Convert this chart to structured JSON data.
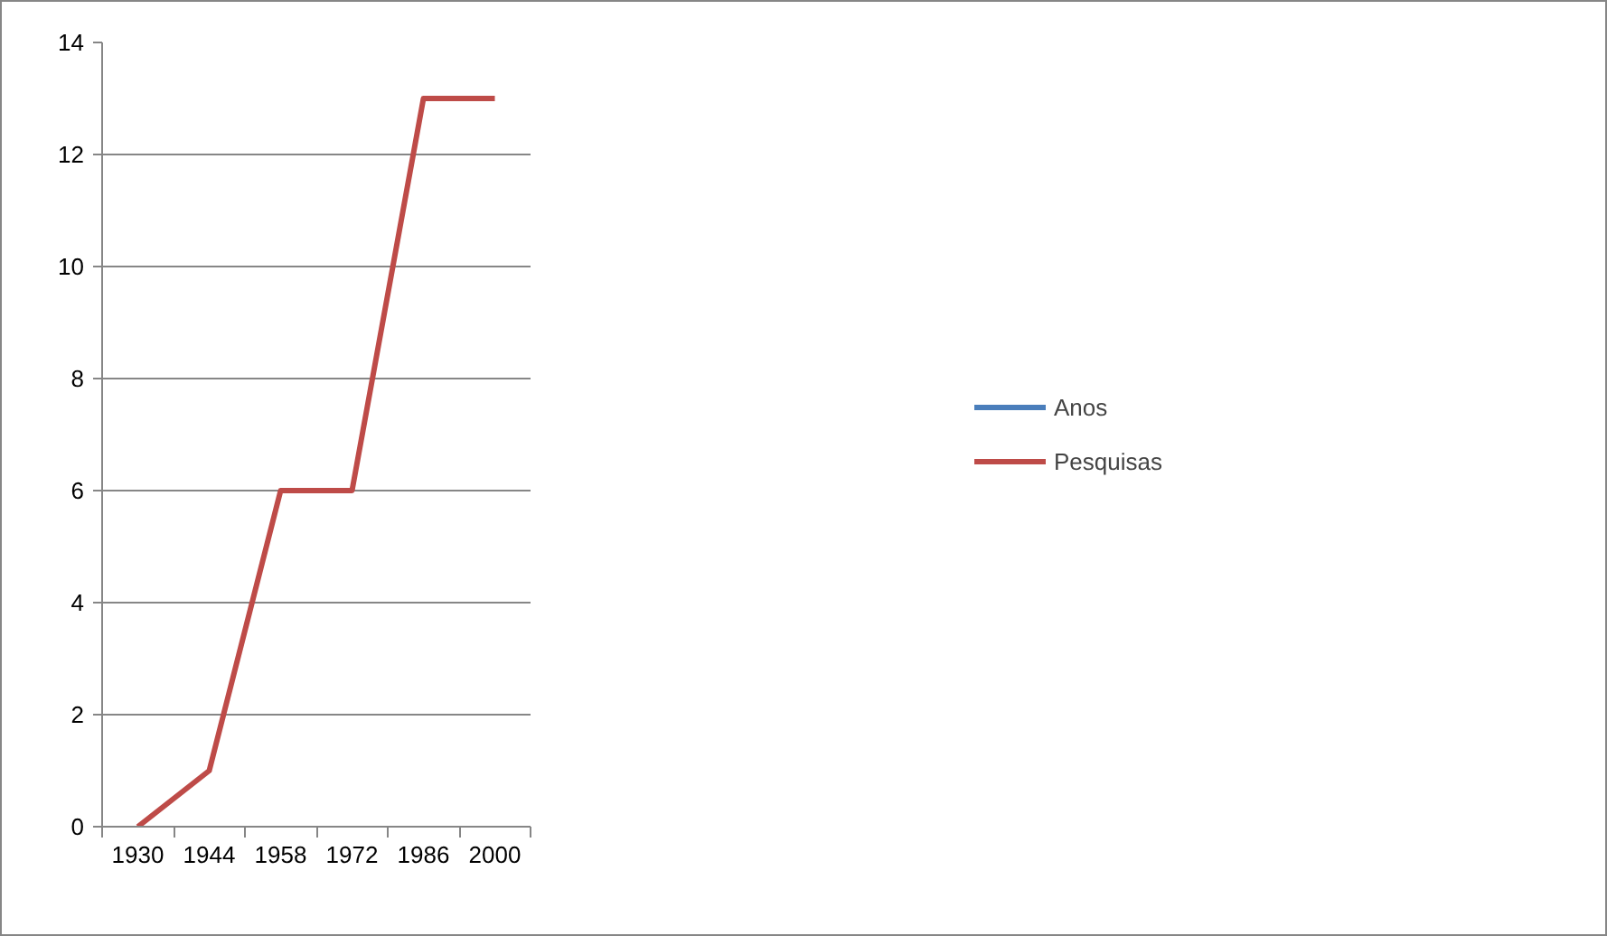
{
  "chart_data": {
    "type": "line",
    "categories": [
      "1930",
      "1944",
      "1958",
      "1972",
      "1986",
      "2000"
    ],
    "series": [
      {
        "name": "Anos",
        "color": "#4a7ebb",
        "values": [
          null,
          null,
          null,
          null,
          null,
          null
        ]
      },
      {
        "name": "Pesquisas",
        "color": "#be4b48",
        "values": [
          0,
          1,
          6,
          6,
          13,
          13
        ]
      }
    ],
    "ylim": [
      0,
      14
    ],
    "yticks": [
      0,
      2,
      4,
      6,
      8,
      10,
      12,
      14
    ],
    "grid": "y",
    "legend": "right",
    "marker": "none",
    "line_style": "solid"
  }
}
